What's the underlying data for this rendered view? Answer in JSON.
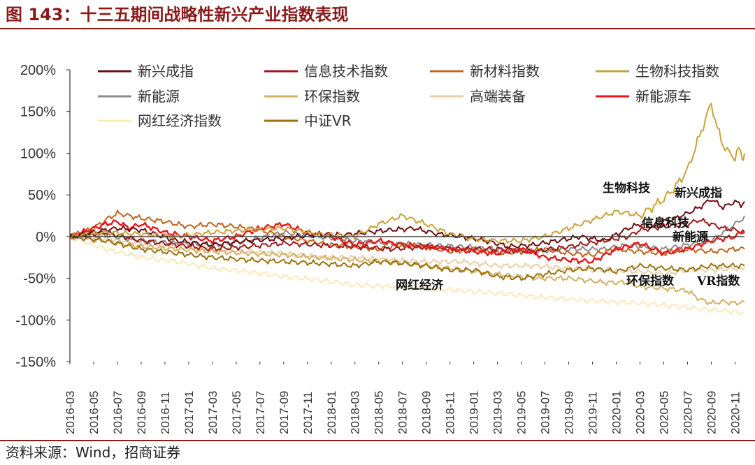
{
  "title": "图 143：十三五期间战略性新兴产业指数表现",
  "source": "资料来源：Wind，招商证券",
  "chart_data": {
    "type": "line",
    "ylim": [
      -150,
      200
    ],
    "y_ticks": [
      "200%",
      "150%",
      "100%",
      "50%",
      "0%",
      "-50%",
      "-100%",
      "-150%"
    ],
    "y_tick_values": [
      200,
      150,
      100,
      50,
      0,
      -50,
      -100,
      -150
    ],
    "x_ticks": [
      "2016-03",
      "2016-05",
      "2016-07",
      "2016-09",
      "2016-11",
      "2017-01",
      "2017-03",
      "2017-05",
      "2017-07",
      "2017-09",
      "2017-11",
      "2018-01",
      "2018-03",
      "2018-05",
      "2018-07",
      "2018-09",
      "2018-11",
      "2019-01",
      "2019-03",
      "2019-05",
      "2019-07",
      "2019-09",
      "2019-11",
      "2020-01",
      "2020-03",
      "2020-05",
      "2020-07",
      "2020-09",
      "2020-11"
    ],
    "x_tick_months": [
      0,
      2,
      4,
      6,
      8,
      10,
      12,
      14,
      16,
      18,
      20,
      22,
      24,
      26,
      28,
      30,
      32,
      34,
      36,
      38,
      40,
      42,
      44,
      46,
      48,
      50,
      52,
      54,
      56
    ],
    "x_range_months": [
      0,
      56.8
    ],
    "series": [
      {
        "name": "新兴成指",
        "color": "#6b0f13",
        "months": [
          0,
          2,
          3,
          4,
          6,
          9,
          12,
          15,
          18,
          21,
          23,
          25,
          27,
          29,
          31,
          33,
          35,
          37,
          39,
          41,
          43,
          45,
          47,
          48,
          49,
          50,
          51,
          52,
          53,
          54,
          55,
          56,
          56.5,
          56.8
        ],
        "values": [
          0,
          5,
          8,
          10,
          8,
          -5,
          -10,
          -5,
          -2,
          3,
          2,
          5,
          8,
          10,
          3,
          0,
          -5,
          -12,
          -10,
          -5,
          0,
          -5,
          10,
          15,
          12,
          18,
          22,
          28,
          35,
          45,
          35,
          42,
          38,
          42
        ]
      },
      {
        "name": "信息技术指数",
        "color": "#9c1a1a",
        "months": [
          0,
          3,
          6,
          9,
          12,
          15,
          18,
          21,
          24,
          27,
          30,
          33,
          36,
          39,
          42,
          45,
          47,
          48,
          50,
          52,
          53,
          54,
          55,
          56,
          56.8
        ],
        "values": [
          0,
          5,
          -5,
          -10,
          -15,
          -12,
          -8,
          -10,
          -12,
          -15,
          -12,
          -15,
          -15,
          -18,
          -12,
          -5,
          0,
          8,
          12,
          15,
          20,
          15,
          10,
          8,
          5
        ]
      },
      {
        "name": "新材料指数",
        "color": "#c0651f",
        "months": [
          0,
          2,
          3,
          4,
          5,
          6,
          8,
          10,
          12,
          14,
          16,
          18,
          20,
          22,
          24,
          26,
          28,
          30,
          32,
          34,
          36,
          38,
          40,
          42,
          44,
          46,
          48,
          50,
          52,
          54,
          56,
          56.8
        ],
        "values": [
          0,
          10,
          20,
          28,
          25,
          22,
          18,
          12,
          15,
          12,
          8,
          0,
          -5,
          -10,
          -12,
          -15,
          -10,
          -12,
          -18,
          -15,
          -20,
          -18,
          -15,
          -20,
          -22,
          -15,
          -18,
          -20,
          -15,
          -18,
          -15,
          -15
        ]
      },
      {
        "name": "生物科技指数",
        "color": "#c8a33a",
        "months": [
          0,
          3,
          6,
          9,
          12,
          15,
          18,
          21,
          24,
          26,
          27,
          28,
          30,
          32,
          34,
          36,
          38,
          40,
          42,
          44,
          45,
          46,
          47,
          48,
          49,
          50,
          51,
          52,
          53,
          53.5,
          54,
          54.5,
          55,
          55.5,
          56,
          56.3,
          56.6,
          56.8
        ],
        "values": [
          0,
          5,
          3,
          0,
          5,
          8,
          10,
          3,
          0,
          15,
          20,
          25,
          15,
          3,
          -3,
          -5,
          -5,
          0,
          10,
          20,
          25,
          30,
          28,
          25,
          35,
          45,
          60,
          80,
          120,
          140,
          160,
          130,
          110,
          100,
          95,
          105,
          95,
          100
        ]
      },
      {
        "name": "新能源",
        "color": "#8c8c8c",
        "months": [
          0,
          3,
          6,
          9,
          12,
          15,
          18,
          21,
          24,
          27,
          30,
          33,
          36,
          39,
          42,
          45,
          47,
          48,
          50,
          52,
          54,
          55,
          56,
          56.5,
          56.8
        ],
        "values": [
          0,
          2,
          -5,
          -8,
          -10,
          -5,
          5,
          0,
          -5,
          -8,
          -10,
          -12,
          -15,
          -18,
          -15,
          -15,
          -10,
          -12,
          -15,
          -10,
          -5,
          5,
          15,
          20,
          25
        ]
      },
      {
        "name": "环保指数",
        "color": "#d4b062",
        "months": [
          0,
          3,
          6,
          9,
          12,
          15,
          18,
          21,
          24,
          27,
          30,
          33,
          36,
          39,
          42,
          45,
          47,
          48,
          50,
          52,
          53,
          54,
          55,
          56,
          56.8
        ],
        "values": [
          0,
          -5,
          -12,
          -15,
          -18,
          -20,
          -22,
          -25,
          -28,
          -30,
          -35,
          -40,
          -45,
          -50,
          -50,
          -55,
          -55,
          -60,
          -62,
          -65,
          -75,
          -80,
          -78,
          -80,
          -78
        ]
      },
      {
        "name": "高端装备",
        "color": "#e8cfa8",
        "months": [
          0,
          3,
          6,
          9,
          12,
          15,
          18,
          21,
          24,
          27,
          30,
          33,
          36,
          39,
          42,
          45,
          48,
          50,
          52,
          54,
          56,
          56.8
        ],
        "values": [
          0,
          -3,
          -8,
          -12,
          -15,
          -18,
          -20,
          -25,
          -25,
          -28,
          -30,
          -30,
          -35,
          -35,
          -38,
          -40,
          -42,
          -45,
          -40,
          -40,
          -38,
          -40
        ]
      },
      {
        "name": "新能源车",
        "color": "#e8161b",
        "months": [
          0,
          2,
          3,
          4,
          5,
          6,
          8,
          10,
          12,
          14,
          16,
          18,
          20,
          22,
          24,
          26,
          28,
          30,
          32,
          34,
          36,
          38,
          40,
          42,
          44,
          46,
          48,
          50,
          52,
          54,
          56,
          56.5,
          56.8
        ],
        "values": [
          0,
          10,
          15,
          18,
          10,
          15,
          5,
          0,
          -5,
          0,
          10,
          15,
          5,
          0,
          -10,
          -5,
          -10,
          -12,
          -15,
          -18,
          -20,
          -15,
          -25,
          -28,
          -30,
          -15,
          -8,
          -20,
          -15,
          -5,
          0,
          5,
          5
        ]
      },
      {
        "name": "网红经济指数",
        "color": "#fbe8b8",
        "months": [
          0,
          3,
          6,
          9,
          12,
          15,
          18,
          21,
          24,
          27,
          30,
          33,
          36,
          39,
          42,
          45,
          48,
          50,
          52,
          54,
          56,
          56.8
        ],
        "values": [
          0,
          -15,
          -25,
          -30,
          -38,
          -42,
          -48,
          -52,
          -58,
          -60,
          -62,
          -65,
          -68,
          -72,
          -75,
          -78,
          -80,
          -82,
          -85,
          -88,
          -90,
          -92
        ]
      },
      {
        "name": "中证VR",
        "color": "#9b7212",
        "months": [
          0,
          3,
          6,
          9,
          12,
          15,
          18,
          21,
          24,
          26,
          28,
          30,
          32,
          34,
          36,
          38,
          40,
          42,
          44,
          46,
          48,
          50,
          52,
          54,
          56,
          56.8
        ],
        "values": [
          0,
          -5,
          -15,
          -20,
          -25,
          -28,
          -30,
          -32,
          -35,
          -30,
          -32,
          -35,
          -40,
          -40,
          -48,
          -50,
          -45,
          -40,
          -38,
          -42,
          -35,
          -38,
          -40,
          -35,
          -35,
          -35
        ]
      }
    ],
    "annotations": [
      "生物科技",
      "新兴成指",
      "信息科技",
      "新能源",
      "网红经济",
      "环保指数",
      "VR指数"
    ]
  }
}
